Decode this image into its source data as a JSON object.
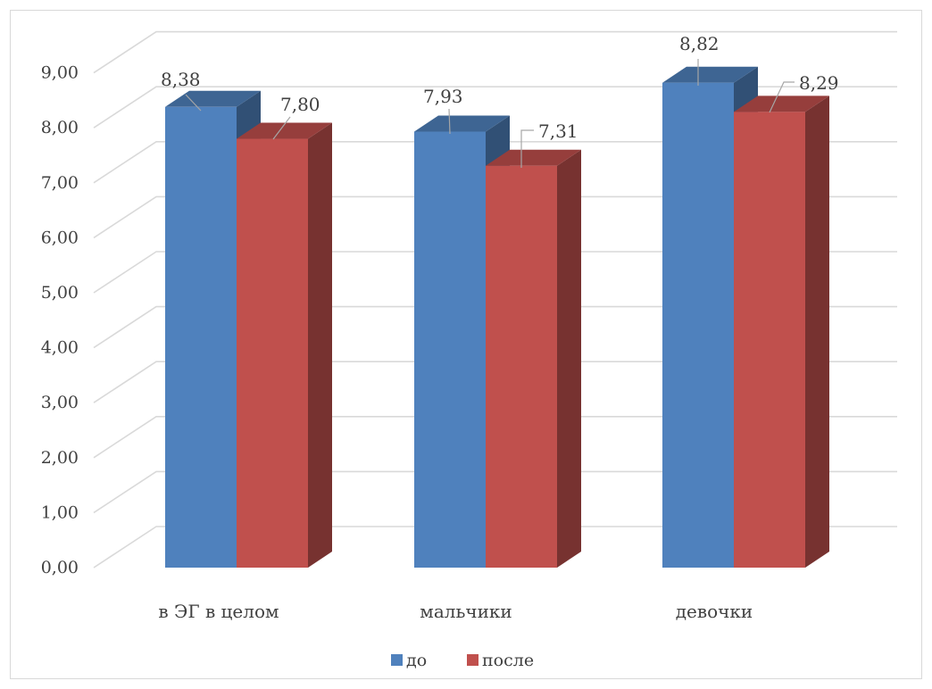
{
  "chart_data": {
    "type": "bar",
    "style": "3d-clustered-column",
    "categories": [
      "в ЭГ в целом",
      "мальчики",
      "девочки"
    ],
    "series": [
      {
        "name": "до",
        "values": [
          8.38,
          7.93,
          8.82
        ],
        "color": "#4f81bd"
      },
      {
        "name": "после",
        "values": [
          7.8,
          7.31,
          8.29
        ],
        "color": "#c0504d"
      }
    ],
    "value_labels": {
      "до": [
        "8,38",
        "7,93",
        "8,82"
      ],
      "после": [
        "7,80",
        "7,31",
        "8,29"
      ]
    },
    "ylim": [
      0,
      9
    ],
    "y_ticks": [
      "0,00",
      "1,00",
      "2,00",
      "3,00",
      "4,00",
      "5,00",
      "6,00",
      "7,00",
      "8,00",
      "9,00"
    ],
    "grid": true,
    "legend_position": "bottom",
    "title": "",
    "xlabel": "",
    "ylabel": ""
  }
}
